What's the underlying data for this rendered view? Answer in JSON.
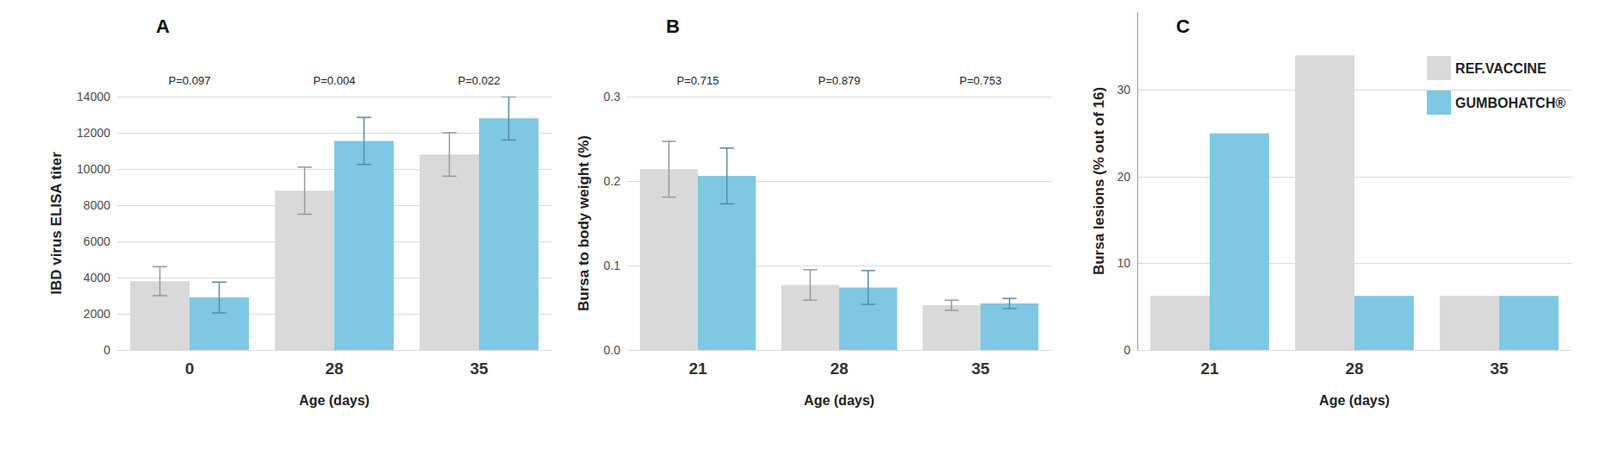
{
  "chart_data": [
    {
      "type": "bar",
      "title": "A",
      "xlabel": "Age (days)",
      "ylabel": "IBD virus ELISA titer",
      "categories": [
        "0",
        "28",
        "35"
      ],
      "annotations": [
        "P=0.097",
        "P=0.004",
        "P=0.022"
      ],
      "series": [
        {
          "name": "REF.VACCINE",
          "color": "#d9d9d9",
          "values": [
            3800,
            8800,
            10800
          ],
          "errors": [
            800,
            1300,
            1200
          ]
        },
        {
          "name": "GUMBOHATCH®",
          "color": "#7ec8e3",
          "values": [
            2900,
            11550,
            12800
          ],
          "errors": [
            850,
            1300,
            1200
          ]
        }
      ],
      "ylim": [
        0,
        14000
      ],
      "yticks": [
        0,
        2000,
        4000,
        6000,
        8000,
        10000,
        12000,
        14000
      ],
      "grid": true
    },
    {
      "type": "bar",
      "title": "B",
      "xlabel": "Age (days)",
      "ylabel": "Bursa to body weight (%)",
      "categories": [
        "21",
        "28",
        "35"
      ],
      "annotations": [
        "P=0.715",
        "P=0.879",
        "P=0.753"
      ],
      "series": [
        {
          "name": "REF.VACCINE",
          "color": "#d9d9d9",
          "values": [
            0.214,
            0.077,
            0.053
          ],
          "errors": [
            0.033,
            0.018,
            0.006
          ]
        },
        {
          "name": "GUMBOHATCH®",
          "color": "#7ec8e3",
          "values": [
            0.206,
            0.074,
            0.055
          ],
          "errors": [
            0.033,
            0.02,
            0.006
          ]
        }
      ],
      "ylim": [
        0,
        0.3
      ],
      "yticks": [
        {
          "value": 0,
          "label": "0.0"
        },
        0.1,
        0.2,
        0.3
      ],
      "grid": true
    },
    {
      "type": "bar",
      "title": "C",
      "xlabel": "Age (days)",
      "ylabel": "Bursa lesions (% out of 16)",
      "categories": [
        "21",
        "28",
        "35"
      ],
      "series": [
        {
          "name": "REF.VACCINE",
          "color": "#d9d9d9",
          "values": [
            6.25,
            34,
            6.25
          ]
        },
        {
          "name": "GUMBOHATCH®",
          "color": "#7ec8e3",
          "values": [
            25,
            6.25,
            6.25
          ]
        }
      ],
      "ylim": [
        0,
        39
      ],
      "yticks": [
        0,
        10,
        20,
        30
      ],
      "grid": true,
      "legend": "top-right"
    }
  ]
}
